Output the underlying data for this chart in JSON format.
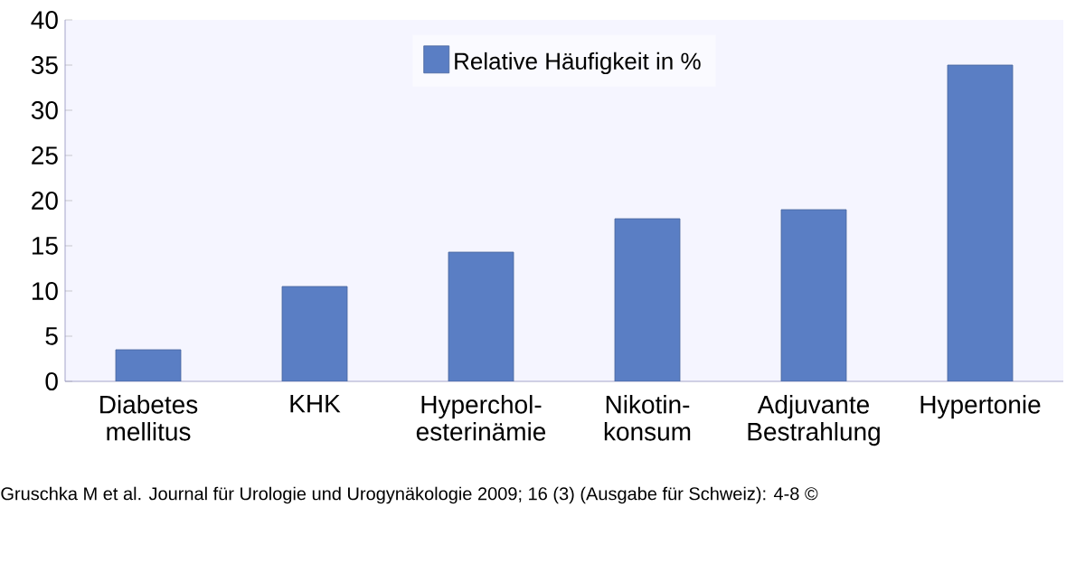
{
  "chart_data": {
    "type": "bar",
    "categories": [
      "Diabetes mellitus",
      "KHK",
      "Hyperchol-esterinämie",
      "Nikotin-konsum",
      "Adjuvante Bestrahlung",
      "Hypertonie"
    ],
    "series": [
      {
        "name": "Relative Häufigkeit in %",
        "color": "#5a7ec4",
        "values": [
          3.5,
          10.5,
          14.3,
          18,
          19,
          35
        ]
      }
    ],
    "ylim": [
      0,
      40
    ],
    "yticks": [
      0,
      5,
      10,
      15,
      20,
      25,
      30,
      35,
      40
    ],
    "legend": "top",
    "annotations": [
      "Gruschka M et al. Journal für Urologie und Urogynäkologie 2009; 16 (3) (Ausgabe für Schweiz): 4-8 ©"
    ]
  }
}
